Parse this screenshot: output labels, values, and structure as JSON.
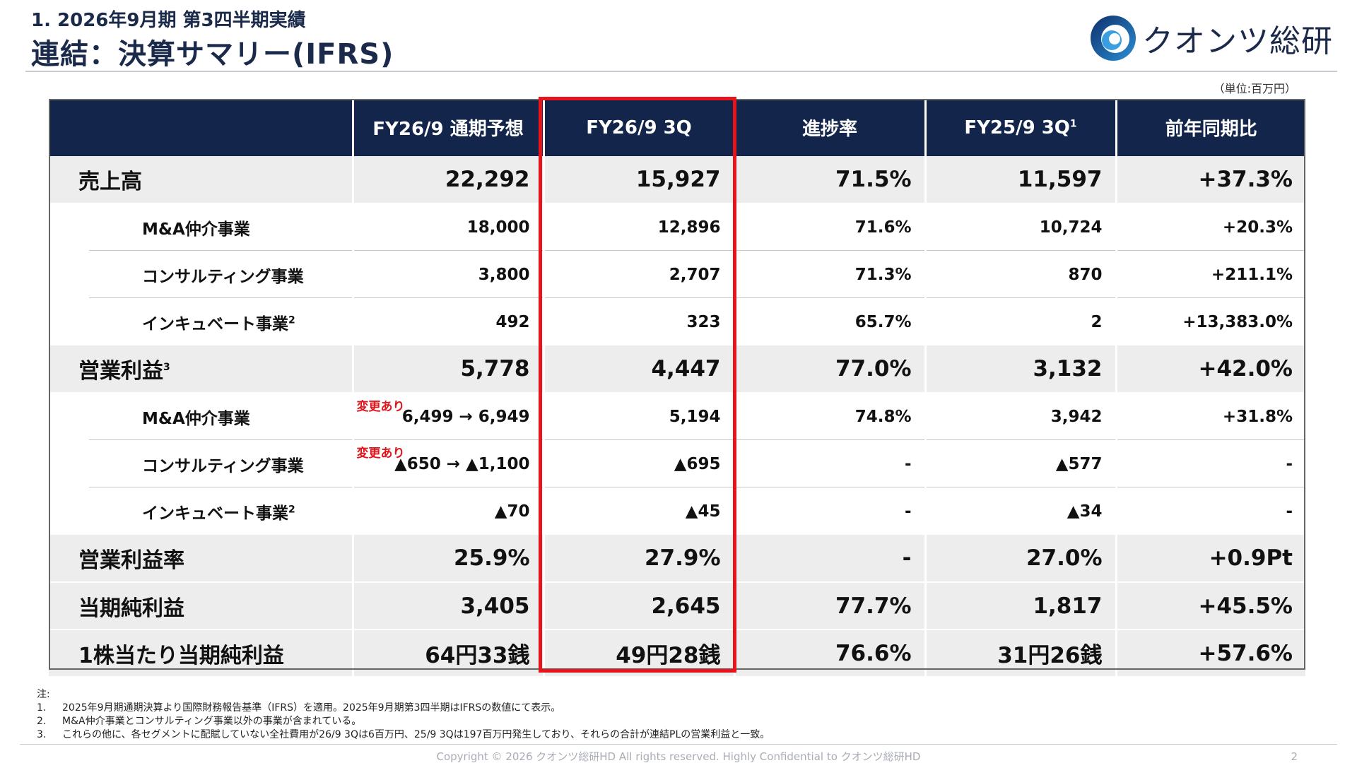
{
  "header": {
    "subtitle": "1. 2026年9月期 第3四半期実績",
    "title": "連結：決算サマリー(IFRS)"
  },
  "logo": {
    "text": "クオンツ総研",
    "icon": "swirl-logo-icon"
  },
  "unit_label": "（単位:百万円）",
  "table": {
    "columns": [
      {
        "label": "",
        "sup": ""
      },
      {
        "label": "FY26/9 通期予想",
        "sup": ""
      },
      {
        "label": "FY26/9 3Q",
        "sup": ""
      },
      {
        "label": "進捗率",
        "sup": ""
      },
      {
        "label": "FY25/9 3Q",
        "sup": "1"
      },
      {
        "label": "前年同期比",
        "sup": ""
      }
    ],
    "rows": [
      {
        "type": "main",
        "label": "売上高",
        "sup": "",
        "values": [
          "22,292",
          "15,927",
          "71.5%",
          "11,597",
          "+37.3%"
        ]
      },
      {
        "type": "sub",
        "label": "M&A仲介事業",
        "sup": "",
        "values": [
          "18,000",
          "12,896",
          "71.6%",
          "10,724",
          "+20.3%"
        ]
      },
      {
        "type": "sub",
        "label": "コンサルティング事業",
        "sup": "",
        "values": [
          "3,800",
          "2,707",
          "71.3%",
          "870",
          "+211.1%"
        ]
      },
      {
        "type": "sub",
        "label": "インキュベート事業",
        "sup": "2",
        "values": [
          "492",
          "323",
          "65.7%",
          "2",
          "+13,383.0%"
        ]
      },
      {
        "type": "main",
        "label": "営業利益",
        "sup": "3",
        "values": [
          "5,778",
          "4,447",
          "77.0%",
          "3,132",
          "+42.0%"
        ]
      },
      {
        "type": "sub",
        "label": "M&A仲介事業",
        "sup": "",
        "changed": "変更あり",
        "values": [
          "6,499 → 6,949",
          "5,194",
          "74.8%",
          "3,942",
          "+31.8%"
        ]
      },
      {
        "type": "sub",
        "label": "コンサルティング事業",
        "sup": "",
        "changed": "変更あり",
        "values": [
          "▲650 → ▲1,100",
          "▲695",
          "-",
          "▲577",
          "-"
        ]
      },
      {
        "type": "sub",
        "label": "インキュベート事業",
        "sup": "2",
        "values": [
          "▲70",
          "▲45",
          "-",
          "▲34",
          "-"
        ]
      },
      {
        "type": "main",
        "label": "営業利益率",
        "sup": "",
        "values": [
          "25.9%",
          "27.9%",
          "-",
          "27.0%",
          "+0.9Pt"
        ]
      },
      {
        "type": "main",
        "label": "当期純利益",
        "sup": "",
        "values": [
          "3,405",
          "2,645",
          "77.7%",
          "1,817",
          "+45.5%"
        ]
      },
      {
        "type": "main",
        "label": "1株当たり当期純利益",
        "sup": "",
        "values": [
          "64円33銭",
          "49円28銭",
          "76.6%",
          "31円26銭",
          "+57.6%"
        ]
      }
    ]
  },
  "notes": {
    "heading": "注:",
    "items": [
      {
        "num": "1.",
        "text": "2025年9月期通期決算より国際財務報告基準（IFRS）を適用。2025年9月期第3四半期はIFRSの数値にて表示。"
      },
      {
        "num": "2.",
        "text": "M&A仲介事業とコンサルティング事業以外の事業が含まれている。"
      },
      {
        "num": "3.",
        "text": "これらの他に、各セグメントに配賦していない全社費用が26/9 3Qは6百万円、25/9 3Qは197百万円発生しており、それらの合計が連結PLの営業利益と一致。"
      }
    ]
  },
  "footer": {
    "copyright": "Copyright © 2026 クオンツ総研HD All rights reserved. Highly Confidential to クオンツ総研HD",
    "page": "2"
  },
  "colors": {
    "header_bg": "#13254a",
    "highlight": "#e8141c",
    "changed_text": "#e0151b",
    "main_row_bg": "#ededed"
  }
}
